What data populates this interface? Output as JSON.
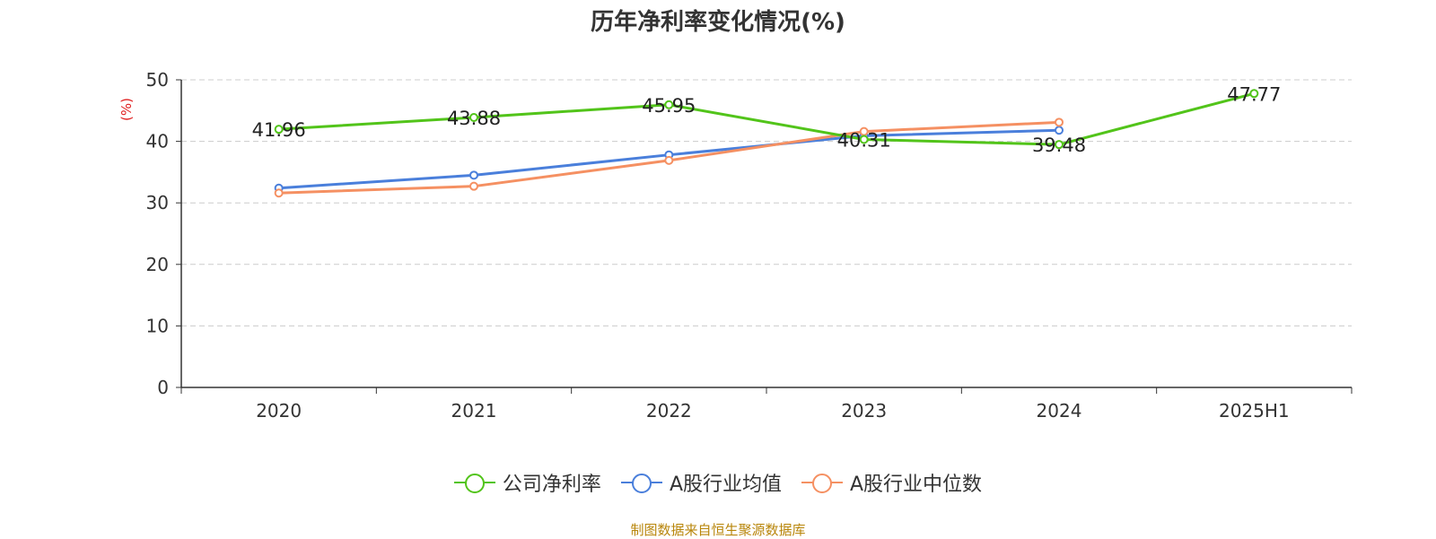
{
  "chart_data": {
    "type": "line",
    "title": "历年净利率变化情况(%)",
    "ylabel": "(%)",
    "xlabel": "",
    "categories": [
      "2020",
      "2021",
      "2022",
      "2023",
      "2024",
      "2025H1"
    ],
    "ylim": [
      0,
      50
    ],
    "yticks": [
      0,
      10,
      20,
      30,
      40,
      50
    ],
    "grid": true,
    "legend_position": "bottom-center",
    "series": [
      {
        "name": "公司净利率",
        "color": "#52c41a",
        "values": [
          41.96,
          43.88,
          45.95,
          40.31,
          39.48,
          47.77
        ],
        "labels": [
          "41.96",
          "43.88",
          "45.95",
          "40.31",
          "39.48",
          "47.77"
        ]
      },
      {
        "name": "A股行业均值",
        "color": "#4a7fdb",
        "values": [
          32.4,
          34.5,
          37.8,
          40.9,
          41.8,
          null
        ]
      },
      {
        "name": "A股行业中位数",
        "color": "#f59062",
        "values": [
          31.6,
          32.7,
          36.9,
          41.6,
          43.1,
          null
        ]
      }
    ]
  },
  "source_text": "制图数据来自恒生聚源数据库"
}
